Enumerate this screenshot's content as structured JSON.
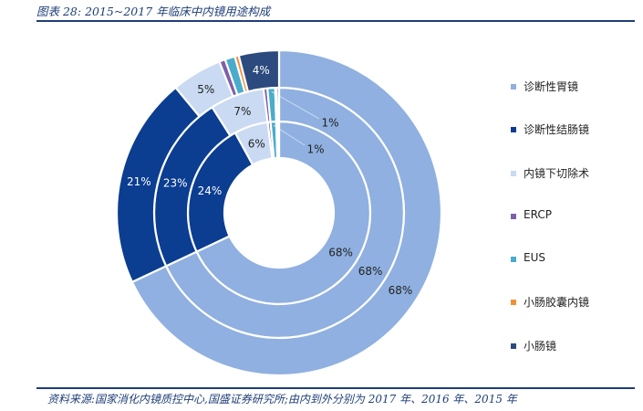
{
  "title": "图表 28:  2015~2017 年临床中内镜用途构成",
  "source": "资料来源:国家消化内镜质控中心,国盛证券研究所;由内到外分别为 2017 年、2016 年、2015 年",
  "chart_data": {
    "type": "donut",
    "title": "2015~2017 年临床中内镜用途构成",
    "categories": [
      "诊断性胃镜",
      "诊断性结肠镜",
      "内镜下切除术",
      "ERCP",
      "EUS",
      "小肠胶囊内镜",
      "小肠镜"
    ],
    "colors": [
      "#8fb0e0",
      "#0b3d91",
      "#c9daf2",
      "#7e5fa8",
      "#4aaccb",
      "#f0913a",
      "#2c4a7e"
    ],
    "ring_order": "inner to outer: 2017, 2016, 2015",
    "series": [
      {
        "name": "2017",
        "values": [
          68,
          24,
          6,
          0.5,
          1,
          0.2,
          0.3
        ],
        "labels": [
          "68%",
          "24%",
          "6%",
          "",
          "1%",
          "",
          ""
        ]
      },
      {
        "name": "2016",
        "values": [
          68,
          23,
          7,
          0.5,
          1,
          0.2,
          0.3
        ],
        "labels": [
          "68%",
          "23%",
          "7%",
          "",
          "1%",
          "",
          ""
        ]
      },
      {
        "name": "2015",
        "values": [
          68,
          21,
          5,
          0.6,
          1,
          0.4,
          4
        ],
        "labels": [
          "68%",
          "21%",
          "5%",
          "",
          "",
          "",
          "4%"
        ]
      }
    ],
    "legend_position": "right"
  }
}
